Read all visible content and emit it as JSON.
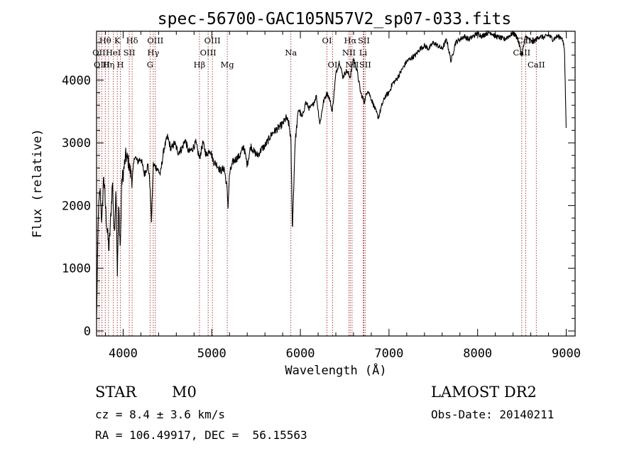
{
  "chart_data": {
    "type": "line",
    "title": "spec-56700-GAC105N57V2_sp07-033.fits",
    "xlabel": "Wavelength (Å)",
    "ylabel": "Flux (relative)",
    "xlim": [
      3700,
      9100
    ],
    "ylim": [
      -80,
      4780
    ],
    "xticks": [
      4000,
      5000,
      6000,
      7000,
      8000,
      9000
    ],
    "yticks": [
      0,
      1000,
      2000,
      3000,
      4000
    ],
    "grid": false,
    "series": [
      {
        "x": [
          3700,
          3720,
          3740,
          3760,
          3780,
          3800,
          3820,
          3840,
          3860,
          3880,
          3900,
          3920,
          3935,
          3950,
          3968,
          3985,
          4000,
          4030,
          4060,
          4101,
          4130,
          4160,
          4200,
          4240,
          4280,
          4300,
          4320,
          4340,
          4380,
          4420,
          4460,
          4500,
          4540,
          4580,
          4620,
          4660,
          4700,
          4740,
          4780,
          4820,
          4861,
          4900,
          4940,
          4980,
          5020,
          5060,
          5100,
          5140,
          5170,
          5184,
          5200,
          5240,
          5280,
          5320,
          5360,
          5400,
          5440,
          5480,
          5520,
          5560,
          5600,
          5640,
          5680,
          5720,
          5760,
          5800,
          5840,
          5870,
          5893,
          5910,
          5940,
          5980,
          6020,
          6060,
          6100,
          6140,
          6180,
          6220,
          6260,
          6300,
          6330,
          6360,
          6400,
          6440,
          6480,
          6520,
          6563,
          6600,
          6640,
          6680,
          6720,
          6760,
          6800,
          6840,
          6880,
          6920,
          6960,
          7000,
          7040,
          7080,
          7120,
          7160,
          7200,
          7250,
          7300,
          7350,
          7400,
          7450,
          7500,
          7550,
          7600,
          7650,
          7700,
          7750,
          7800,
          7850,
          7900,
          7950,
          8000,
          8050,
          8100,
          8150,
          8200,
          8250,
          8300,
          8350,
          8400,
          8450,
          8498,
          8542,
          8580,
          8620,
          8662,
          8700,
          8750,
          8800,
          8850,
          8900,
          8950,
          8980,
          9000
        ],
        "y": [
          150,
          1900,
          2250,
          1700,
          2500,
          2000,
          1600,
          1300,
          1800,
          2400,
          1500,
          2300,
          900,
          2000,
          1300,
          2400,
          2500,
          2800,
          2700,
          2400,
          2800,
          2700,
          2750,
          2500,
          2650,
          2400,
          1750,
          2650,
          2600,
          2500,
          2900,
          3100,
          2900,
          3000,
          2850,
          2900,
          3050,
          2850,
          2900,
          3000,
          2750,
          3000,
          2800,
          2900,
          2700,
          2650,
          2550,
          2600,
          2300,
          2000,
          2500,
          2700,
          2750,
          2800,
          2950,
          2650,
          2950,
          2850,
          2800,
          2900,
          2950,
          3050,
          3150,
          3200,
          3250,
          3300,
          3400,
          3300,
          3050,
          1600,
          3000,
          3550,
          3400,
          3650,
          3550,
          3600,
          3750,
          3300,
          3650,
          3800,
          3700,
          3500,
          4100,
          4300,
          4050,
          4150,
          4050,
          4350,
          4150,
          3800,
          3650,
          3850,
          3700,
          3550,
          3400,
          3600,
          3750,
          3800,
          3950,
          4000,
          4100,
          4200,
          4300,
          4350,
          4400,
          4500,
          4550,
          4500,
          4600,
          4550,
          4500,
          4650,
          4300,
          4600,
          4650,
          4700,
          4650,
          4700,
          4750,
          4700,
          4750,
          4760,
          4700,
          4680,
          4650,
          4700,
          4750,
          4680,
          4400,
          4700,
          4650,
          4600,
          4650,
          4700,
          4680,
          4720,
          4650,
          4700,
          4680,
          4500,
          3200
        ]
      }
    ],
    "lines": [
      {
        "name": "Hθ",
        "x": 3798,
        "row": 1
      },
      {
        "name": "OII",
        "x": 3727,
        "row": 2
      },
      {
        "name": "OIII",
        "x": 3760,
        "row": 3
      },
      {
        "name": "K",
        "x": 3934,
        "row": 1
      },
      {
        "name": "HeI",
        "x": 3889,
        "row": 2
      },
      {
        "name": "Hη",
        "x": 3835,
        "row": 3
      },
      {
        "name": "Hδ",
        "x": 4101,
        "row": 1
      },
      {
        "name": "SII",
        "x": 4069,
        "row": 2
      },
      {
        "name": "H",
        "x": 3969,
        "row": 3
      },
      {
        "name": "OIII",
        "x": 4363,
        "row": 1
      },
      {
        "name": "Hγ",
        "x": 4340,
        "row": 2
      },
      {
        "name": "G",
        "x": 4304,
        "row": 3
      },
      {
        "name": "OIII",
        "x": 5007,
        "row": 1
      },
      {
        "name": "OIII",
        "x": 4959,
        "row": 2
      },
      {
        "name": "Hβ",
        "x": 4861,
        "row": 3
      },
      {
        "name": "Mg",
        "x": 5175,
        "row": 3
      },
      {
        "name": "Na",
        "x": 5893,
        "row": 2
      },
      {
        "name": "OI",
        "x": 6300,
        "row": 1
      },
      {
        "name": "OI",
        "x": 6364,
        "row": 3
      },
      {
        "name": "Hα",
        "x": 6563,
        "row": 1
      },
      {
        "name": "SII",
        "x": 6716,
        "row": 1
      },
      {
        "name": "NII",
        "x": 6548,
        "row": 2
      },
      {
        "name": "Li",
        "x": 6708,
        "row": 2
      },
      {
        "name": "NII",
        "x": 6583,
        "row": 3
      },
      {
        "name": "SII",
        "x": 6731,
        "row": 3
      },
      {
        "name": "CaII",
        "x": 8542,
        "row": 1
      },
      {
        "name": "CaII",
        "x": 8498,
        "row": 2
      },
      {
        "name": "CaII",
        "x": 8662,
        "row": 3
      }
    ],
    "colors": {
      "spectrum": "#000000",
      "lines": "#a52a2a"
    }
  },
  "info": {
    "class": "STAR",
    "subclass": "M0",
    "survey": "LAMOST DR2",
    "cz": "cz = 8.4 ± 3.6 km/s",
    "obs_date": "Obs-Date: 20140211",
    "radec": "RA = 106.49917, DEC =  56.15563"
  }
}
